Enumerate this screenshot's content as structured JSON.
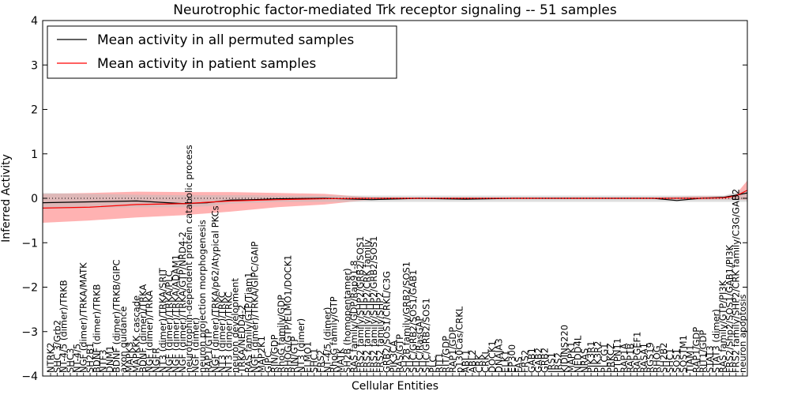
{
  "chart_data": {
    "type": "line",
    "title": "Neurotrophic factor-mediated Trk receptor signaling -- 51 samples",
    "xlabel": "Cellular Entities",
    "ylabel": "Inferred Activity",
    "ylim": [
      -4,
      4
    ],
    "yticks": [
      -4,
      -3,
      -2,
      -1,
      0,
      1,
      2,
      3,
      4
    ],
    "ytick_labels": [
      "−4",
      "−3",
      "−2",
      "−1",
      "0",
      "1",
      "2",
      "3",
      "4"
    ],
    "xlim": [
      0,
      120
    ],
    "legend": {
      "position": "top-left",
      "entries": [
        {
          "label": "Mean activity in all permuted samples",
          "color": "#000000"
        },
        {
          "label": "Mean activity in patient samples",
          "color": "#ff0000"
        }
      ]
    },
    "reference_line": {
      "y": 0,
      "style": "dotted",
      "color": "#000000"
    },
    "entity_labels": [
      "NTRK2",
      "SHC 3/Grb2",
      "NT-4/5 (dimer)/TRKB",
      "SHC3",
      "NT-4/5",
      "NGF (dimer)/TRKA/MATK",
      "SH2B1",
      "BDNF (dimer)/TRKB",
      "NTF3",
      "DNM1",
      "BDNF (dimer)/TRKB/GIPC",
      "axon guidance",
      "MAPK3",
      "MAPKKK cascade",
      "BDNF (dimer)/TRKA",
      "NGF (dimer)/TRKA",
      "NGFR",
      "NT3 (dimer)/TRKA/SRIT",
      "NGF (dimer)/TRKA/PLC",
      "NGF (dimer)/TRKA/ADAM1",
      "NGF (dimer)/TRKA/GTP/NRD4-2",
      "neurotrophin-dependent protein catabolic process",
      "NGF (dimer)",
      "neuron projection morphogenesis",
      "RAP1/GTP",
      "NGF (dimer)/TRKA/p62/Atypical PKCs",
      "NT3 (dimer)/TRKC",
      "NT3 (dimer)/TRKC",
      "neuron development",
      "TRKA/NEDD4-2",
      "RAS family/GTP/Tiam1",
      "NGF (dimer)/TRKA/GIPC/GAIP",
      "MAP2K1",
      "GIPC",
      "RIN/GDP",
      "RhoG family/GDP",
      "RHOG/GTP/ELMO1/DOCK1",
      "RIN/GTP",
      "NT3 (dimer)",
      "ELMO1",
      "SHC1",
      "FRS2",
      "NT-4/5 (dimer)",
      "RhoG family/GTP",
      "MATK",
      "SH2B (homopentamer)",
      "RAS family/GDP/Rap91-8",
      "FRS2 family/SHP2/GRB2/SOS1",
      "FRS2 family/SHP2/CRK family",
      "FRS2 family/SHP2/GRB2/SOS1",
      "FRS2 family/SHP2",
      "GRB2/SOS1/CRKL/C3G",
      "PIK3CA",
      "RAS/GTP",
      "SH2B family/GRB2/SOS1",
      "SHC/GRB2/SOS1/GAB1",
      "SHC/RasGAP",
      "SHC/GRB2/SOS1",
      "PLC",
      "RIT1",
      "RIT/GDP",
      "RAP1/GDP",
      "p130Cas/CRKL",
      "ABL1",
      "ABL2",
      "CRK",
      "CRKL",
      "DOCK1",
      "DNAJA3",
      "ELK1",
      "EP300",
      "FAS",
      "FRS2",
      "GAB1",
      "GAB2",
      "GRB2",
      "IRS1",
      "IRS2",
      "KIDINS220",
      "MAPK1",
      "NEDD4L",
      "NRAS",
      "PIK3R1",
      "PIK3R2",
      "PLCG1",
      "PRKCZ",
      "PTPN11",
      "RAP1A",
      "RAP1B",
      "RAPGEF1",
      "RASA1",
      "RGS19",
      "RHOG",
      "SH2B2",
      "SHC1",
      "SOS1",
      "SQSTM1",
      "TIAM1",
      "RAP1/GDP",
      "RIT1/GDP",
      "STAT3",
      "STAT3 (dimer)",
      "RAS family/GTP/PI3K",
      "FRS2/Shp2/SOS1/GAB1/PI3K",
      "FRS2 family/SHP2/CRK family/C3G/GAB2",
      "neuron apoptosis"
    ],
    "series": [
      {
        "name": "Mean activity in patient samples",
        "color": "#ff0000",
        "x": [
          0,
          8,
          16,
          24,
          32,
          40,
          48,
          56,
          64,
          72,
          80,
          88,
          96,
          104,
          112,
          116,
          118,
          120
        ],
        "values": [
          -0.22,
          -0.2,
          -0.14,
          -0.12,
          -0.06,
          -0.03,
          -0.01,
          0,
          0,
          0,
          0,
          0,
          0,
          0,
          0,
          0.01,
          0.05,
          0.18
        ],
        "band_upper": [
          0.1,
          0.12,
          0.15,
          0.14,
          0.14,
          0.12,
          0.1,
          0.02,
          0.02,
          0.02,
          0.02,
          0.02,
          0.02,
          0.02,
          0.05,
          0.05,
          0.08,
          0.4
        ],
        "band_lower": [
          -0.55,
          -0.5,
          -0.43,
          -0.38,
          -0.3,
          -0.2,
          -0.14,
          -0.03,
          -0.02,
          -0.02,
          -0.02,
          -0.02,
          -0.02,
          -0.02,
          -0.03,
          -0.03,
          -0.03,
          -0.04
        ]
      },
      {
        "name": "Mean activity in all permuted samples",
        "color": "#000000",
        "x": [
          0,
          8,
          16,
          24,
          28,
          32,
          36,
          40,
          48,
          56,
          64,
          72,
          80,
          88,
          96,
          104,
          108,
          112,
          116,
          120
        ],
        "values": [
          -0.1,
          -0.08,
          -0.06,
          -0.12,
          -0.1,
          -0.04,
          -0.03,
          -0.01,
          0,
          -0.03,
          0,
          -0.02,
          0,
          0,
          0,
          0,
          -0.05,
          0,
          0.02,
          0.12
        ],
        "band_upper": [
          0.12,
          0.1,
          0.08,
          0.07,
          0.07,
          0.07,
          0.07,
          0.06,
          0.06,
          0.06,
          0.06,
          0.06,
          0.06,
          0.06,
          0.06,
          0.06,
          0.06,
          0.06,
          0.06,
          0.2
        ],
        "band_lower": [
          -0.25,
          -0.22,
          -0.2,
          -0.2,
          -0.18,
          -0.12,
          -0.1,
          -0.08,
          -0.08,
          -0.08,
          -0.08,
          -0.08,
          -0.08,
          -0.08,
          -0.08,
          -0.08,
          -0.08,
          -0.08,
          -0.08,
          -0.08
        ]
      }
    ]
  }
}
